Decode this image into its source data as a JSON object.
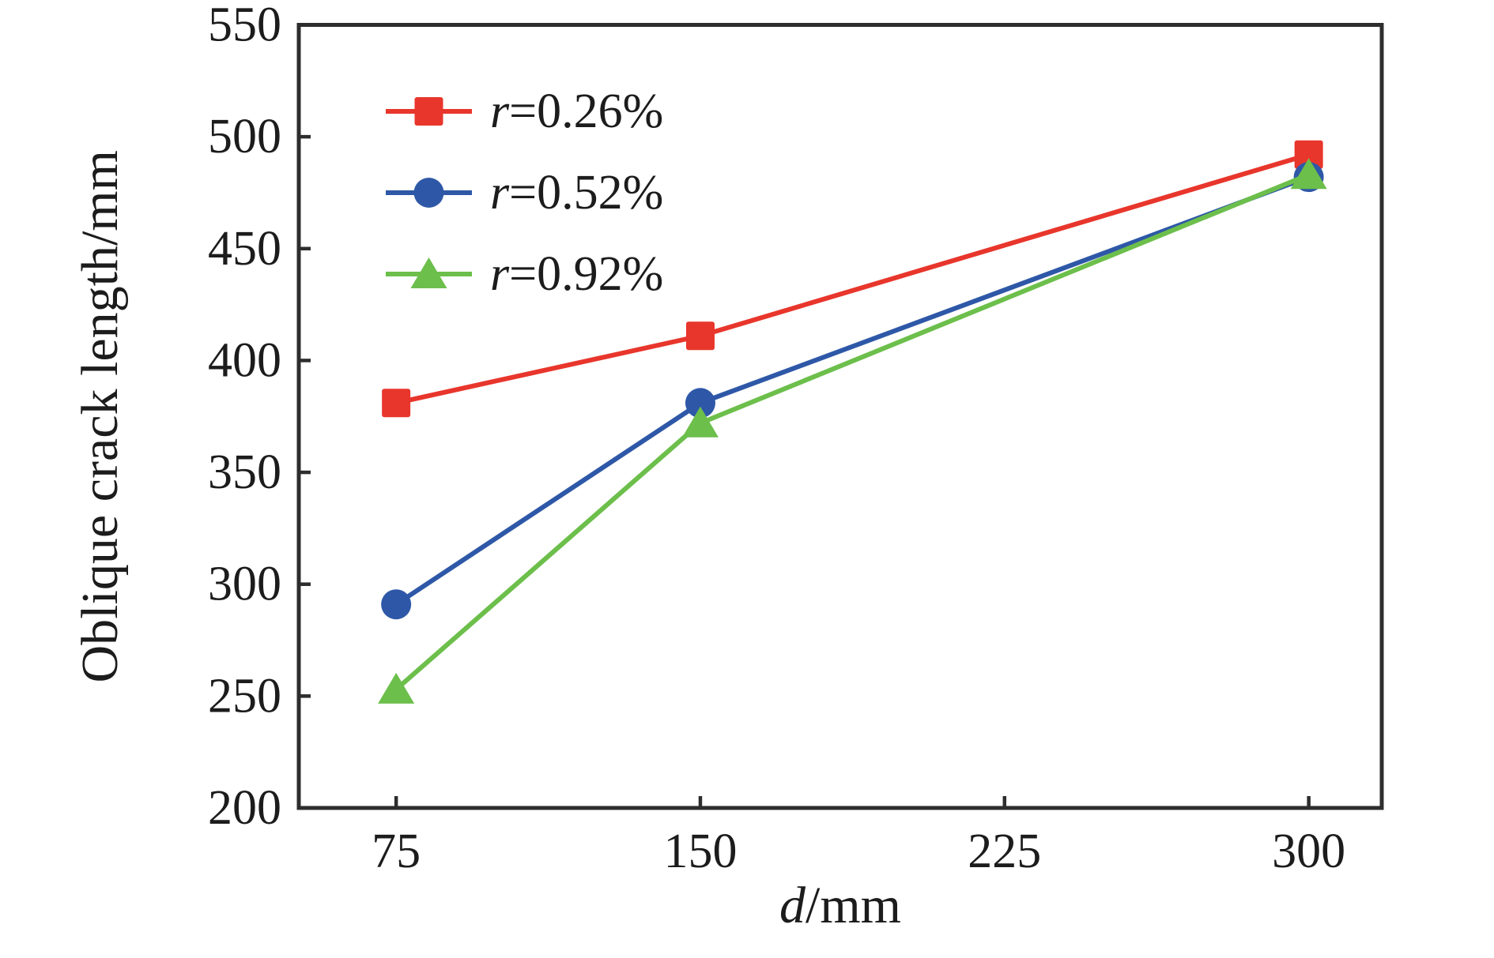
{
  "chart_data": {
    "type": "line",
    "title": "",
    "xlabel": "d/mm",
    "xlabel_italic_first_char": true,
    "ylabel": "Oblique crack length/mm",
    "x": [
      75,
      150,
      300
    ],
    "series": [
      {
        "name": "r=0.26%",
        "marker": "square",
        "color": "#e8362c",
        "values": [
          381,
          411,
          492
        ]
      },
      {
        "name": "r=0.52%",
        "marker": "circle",
        "color": "#2e58a7",
        "values": [
          291,
          381,
          482
        ]
      },
      {
        "name": "r=0.92%",
        "marker": "triangle",
        "color": "#6cbf4b",
        "values": [
          253,
          372,
          483
        ]
      }
    ],
    "legend_italic_first_char": true,
    "xticks": [
      75,
      150,
      225,
      300
    ],
    "yticks": [
      200,
      250,
      300,
      350,
      400,
      450,
      500,
      550
    ],
    "xlim": [
      51,
      318
    ],
    "ylim": [
      200,
      550
    ],
    "grid": false,
    "legend_position": "upper-left",
    "axis_color": "#2d2d2d",
    "text_color": "#1c1c1c"
  }
}
